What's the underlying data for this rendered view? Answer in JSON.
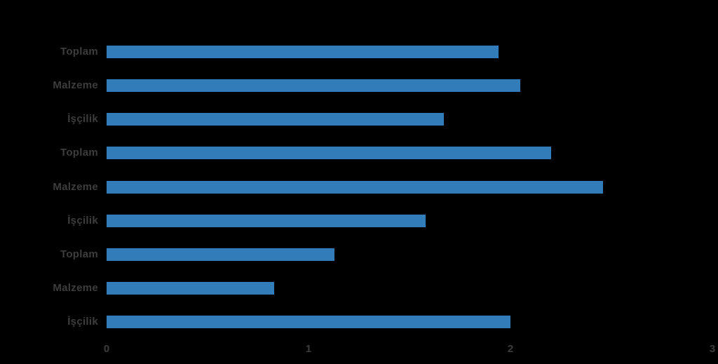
{
  "chart_data": {
    "type": "bar",
    "orientation": "horizontal",
    "title": "",
    "xlabel": "",
    "ylabel": "",
    "categories": [
      "Toplam",
      "Malzeme",
      "İşçilik",
      "Toplam",
      "Malzeme",
      "İşçilik",
      "Toplam",
      "Malzeme",
      "İşçilik"
    ],
    "values": [
      1.94,
      2.05,
      1.67,
      2.2,
      2.46,
      1.58,
      1.13,
      0.83,
      2.0
    ],
    "groups_note": "three repeated label groups top-to-bottom, no group captions visible",
    "xlim": [
      0,
      3
    ],
    "x_ticks": [
      "0",
      "1",
      "2",
      "3"
    ],
    "grid": false,
    "legend": null,
    "colors": {
      "bar": "#317cb9",
      "label": "#3d3d3d",
      "tick": "#3d3d3d",
      "background": "#000000"
    }
  }
}
